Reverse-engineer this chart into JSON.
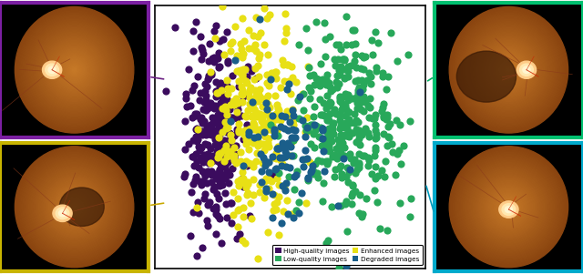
{
  "scatter_plot_bounds": [
    0.265,
    0.02,
    0.465,
    0.96
  ],
  "colors": {
    "high_quality": "#3b0c5e",
    "enhanced": "#e8e015",
    "low_quality": "#28a85a",
    "degraded": "#1a5e8a"
  },
  "legend_labels_col1": [
    "High-quality images",
    "Enhanced images"
  ],
  "legend_labels_col2": [
    "Low-quality images",
    "Degraded images"
  ],
  "border_colors": {
    "top_left": "#7b1fa2",
    "bottom_left": "#c8b400",
    "top_right": "#00c070",
    "bottom_right": "#00aacc"
  },
  "arrow_colors": {
    "top_left": "#6a1f82",
    "bottom_left": "#c8a800",
    "top_right": "#00b060",
    "bottom_right": "#009abb"
  },
  "n_high": 300,
  "n_enhanced": 300,
  "n_low": 350,
  "n_degraded": 100,
  "marker_size": 35,
  "seed": 42
}
